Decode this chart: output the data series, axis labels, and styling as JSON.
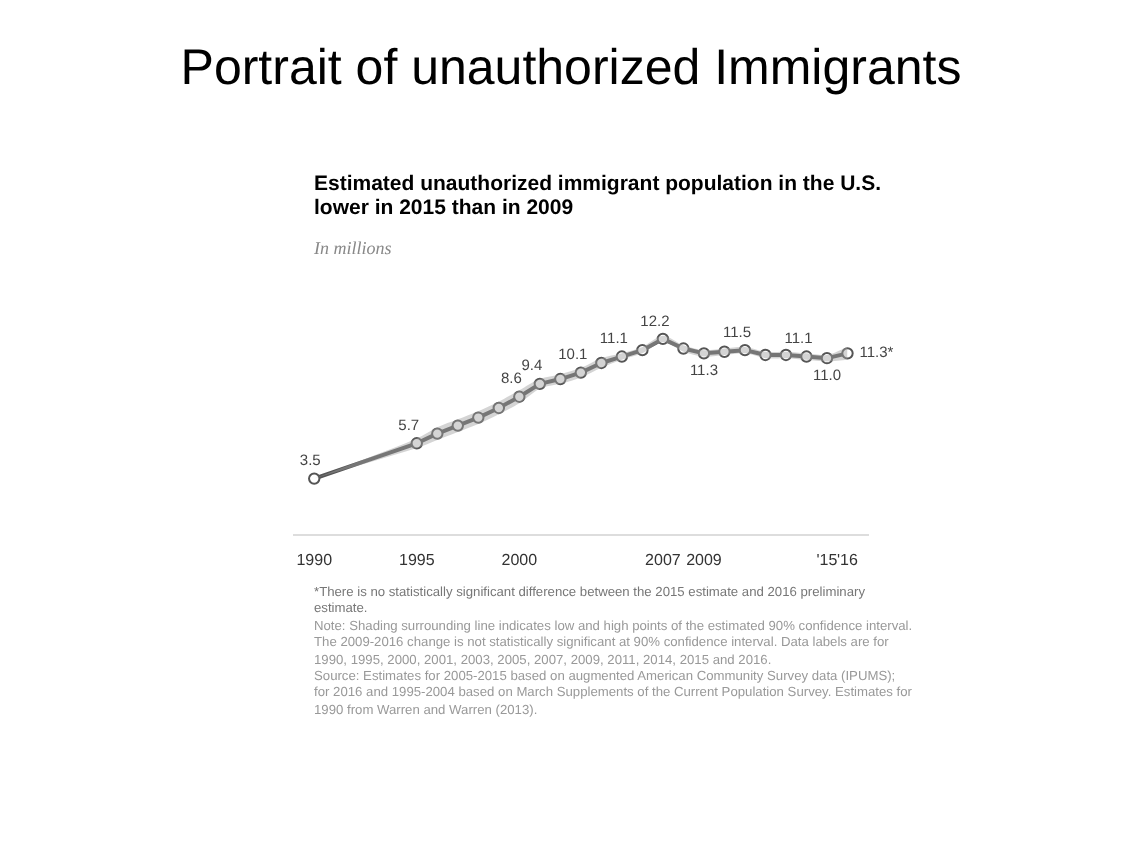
{
  "chart_data": {
    "type": "line",
    "title": "Portrait of unauthorized Immigrants",
    "subtitle": "Estimated unauthorized immigrant population in the U.S. lower in 2015 than in 2009",
    "ylabel": "In millions",
    "x": [
      1990,
      1995,
      1996,
      1997,
      1998,
      1999,
      2000,
      2001,
      2002,
      2003,
      2004,
      2005,
      2006,
      2007,
      2008,
      2009,
      2010,
      2011,
      2012,
      2013,
      2014,
      2015,
      2016
    ],
    "xlim": [
      1989,
      2017
    ],
    "xticks": [
      1990,
      1995,
      2000,
      2007,
      2009,
      {
        "value": 2015,
        "label": "'15"
      },
      {
        "value": 2016,
        "label": "'16"
      }
    ],
    "series": [
      {
        "color": "#555555",
        "values": [
          3.5,
          5.7,
          6.3,
          6.8,
          7.3,
          7.9,
          8.6,
          9.4,
          9.7,
          10.1,
          10.7,
          11.1,
          11.5,
          12.2,
          11.6,
          11.3,
          11.4,
          11.5,
          11.2,
          11.2,
          11.1,
          11.0,
          11.3
        ],
        "lower": [
          3.5,
          5.4,
          5.9,
          6.4,
          6.9,
          7.5,
          8.2,
          9.1,
          9.4,
          9.8,
          10.4,
          10.9,
          11.3,
          12.0,
          11.4,
          11.1,
          11.2,
          11.3,
          11.0,
          11.0,
          10.9,
          10.8,
          10.9
        ],
        "upper": [
          3.5,
          6.0,
          6.7,
          7.2,
          7.7,
          8.3,
          9.0,
          9.7,
          10.0,
          10.4,
          11.0,
          11.3,
          11.7,
          12.4,
          11.8,
          11.5,
          11.6,
          11.7,
          11.4,
          11.4,
          11.3,
          11.2,
          11.7
        ],
        "value_labels": [
          "3.5",
          "5.7",
          null,
          null,
          null,
          null,
          "8.6",
          "9.4",
          null,
          "10.1",
          null,
          "11.1",
          null,
          "12.2",
          null,
          "11.3",
          null,
          "11.5",
          null,
          null,
          "11.1",
          "11.0",
          "11.3*"
        ]
      }
    ],
    "marker": "circle",
    "line_style": "solid",
    "grid": false,
    "legend": false,
    "tick_labels": "x",
    "annotations": [
      "*There is no statistically significant difference between the 2015 estimate and 2016 preliminary estimate.",
      "Note: Shading surrounding line indicates low and high points of the estimated 90% confidence interval. The 2009-2016 change is not statistically significant at 90% confidence interval. Data labels are for 1990, 1995, 2000, 2001, 2003, 2005, 2007, 2009, 2011, 2014, 2015 and 2016.",
      "Source: Estimates for 2005-2015 based on augmented American Community Survey data (IPUMS); for 2016 and 1995-2004 based on March Supplements of the Current Population Survey. Estimates for 1990 from Warren and Warren (2013)."
    ]
  }
}
